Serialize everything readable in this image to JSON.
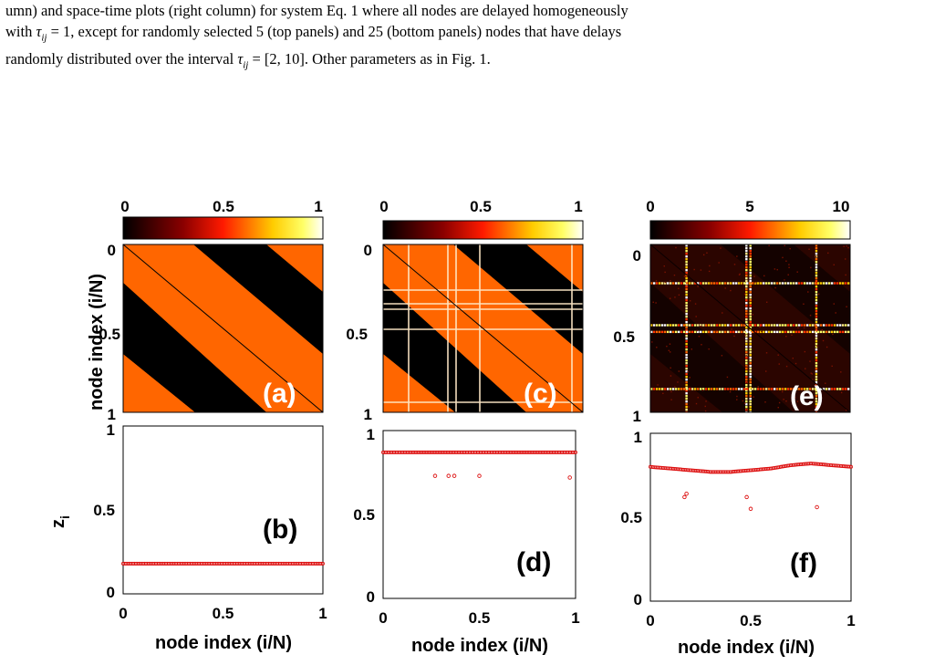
{
  "caption": {
    "line1": "umn) and space-time plots (right column) for system Eq.   1 where all nodes are delayed homogeneously",
    "line2a": "with ",
    "line2b": " = 1, except for randomly selected 5 (top panels) and 25 (bottom panels) nodes that have delays",
    "line3a": "randomly distributed over the interval ",
    "line3b": " = [2, 10]. Other parameters as in Fig.  1.",
    "tau_symbol": "τ",
    "tau_sub": "ij"
  },
  "panels": [
    {
      "label": "(a)",
      "colorbar_ticks": [
        "0",
        "0.5",
        "1"
      ],
      "y_ticks": [
        "0",
        "0.5",
        "1"
      ]
    },
    {
      "label": "(c)",
      "colorbar_ticks": [
        "0",
        "0.5",
        "1"
      ],
      "y_ticks": [
        "0",
        "0.5",
        "1"
      ]
    },
    {
      "label": "(e)",
      "colorbar_ticks": [
        "0",
        "5",
        "10"
      ],
      "y_ticks": [
        "0",
        "0.5",
        "1"
      ]
    }
  ],
  "axes": {
    "top_ylabel": "node index (i/N)",
    "bottom_ylabel": "z",
    "bottom_ylabel_sub": "i",
    "xlabel": "node index (i/N)"
  },
  "chart_data": [
    {
      "type": "scatter",
      "label": "(b)",
      "xlabel": "node index (i/N)",
      "ylabel": "z_i",
      "xlim": [
        0,
        1
      ],
      "ylim": [
        0,
        1
      ],
      "x_ticks": [
        "0",
        "0.5",
        "1"
      ],
      "y_ticks": [
        "0",
        "0.5",
        "1"
      ],
      "series": [
        {
          "x": [
            0,
            1
          ],
          "y": [
            0.18,
            0.18
          ],
          "kind": "dense"
        }
      ],
      "outliers": []
    },
    {
      "type": "scatter",
      "label": "(d)",
      "xlabel": "node index (i/N)",
      "ylabel": "z_i",
      "xlim": [
        0,
        1
      ],
      "ylim": [
        0,
        1
      ],
      "x_ticks": [
        "0",
        "0.5",
        "1"
      ],
      "y_ticks": [
        "0",
        "0.5",
        "1"
      ],
      "series": [
        {
          "x": [
            0,
            1
          ],
          "y": [
            0.87,
            0.87
          ],
          "kind": "dense"
        }
      ],
      "outliers": [
        {
          "x": 0.27,
          "y": 0.73
        },
        {
          "x": 0.34,
          "y": 0.73
        },
        {
          "x": 0.37,
          "y": 0.73
        },
        {
          "x": 0.5,
          "y": 0.73
        },
        {
          "x": 0.97,
          "y": 0.72
        }
      ]
    },
    {
      "type": "scatter",
      "label": "(f)",
      "xlabel": "node index (i/N)",
      "ylabel": "z_i",
      "xlim": [
        0,
        1
      ],
      "ylim": [
        0,
        1
      ],
      "x_ticks": [
        "0",
        "0.5",
        "1"
      ],
      "y_ticks": [
        "0",
        "0.5",
        "1"
      ],
      "series": [
        {
          "x": [
            0,
            0.1,
            0.2,
            0.3,
            0.4,
            0.5,
            0.6,
            0.7,
            0.8,
            0.9,
            1
          ],
          "y": [
            0.8,
            0.79,
            0.78,
            0.77,
            0.77,
            0.78,
            0.79,
            0.81,
            0.82,
            0.81,
            0.8
          ],
          "kind": "dense"
        }
      ],
      "outliers": [
        {
          "x": 0.17,
          "y": 0.62
        },
        {
          "x": 0.18,
          "y": 0.64
        },
        {
          "x": 0.48,
          "y": 0.62
        },
        {
          "x": 0.5,
          "y": 0.55
        },
        {
          "x": 0.83,
          "y": 0.56
        }
      ]
    }
  ],
  "colors": {
    "orange": "#ff6600",
    "black": "#000000",
    "marker": "#dd1111",
    "heat_low": "#000000",
    "heat_mid": "#dd0000",
    "heat_high": "#ffff00",
    "heat_max": "#ffffff"
  }
}
